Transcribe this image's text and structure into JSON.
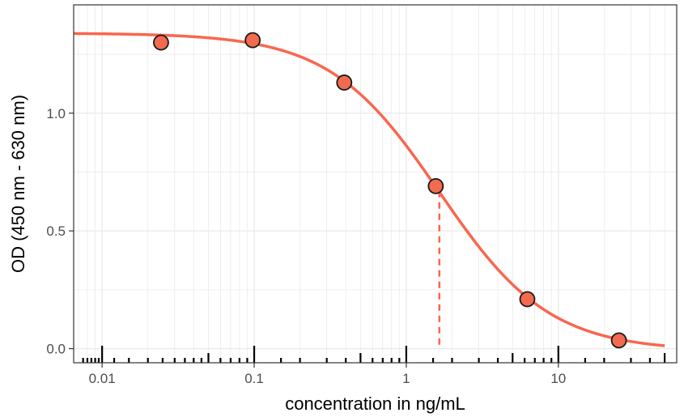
{
  "chart_data": {
    "type": "scatter",
    "xlabel": "concentration in ng/mL",
    "ylabel": "OD (450 nm - 630 nm)",
    "x_scale": "log10",
    "xlim": [
      0.0065,
      60
    ],
    "ylim": [
      -0.06,
      1.46
    ],
    "x_ticks": [
      0.01,
      0.1,
      1,
      10
    ],
    "x_tick_labels": [
      "0.01",
      "0.1",
      "1",
      "10"
    ],
    "y_ticks": [
      0.0,
      0.5,
      1.0
    ],
    "y_tick_labels": [
      "0.0",
      "0.5",
      "1.0"
    ],
    "grid": true,
    "points": {
      "x": [
        0.0244,
        0.0977,
        0.391,
        1.5625,
        6.25,
        25
      ],
      "y": [
        1.3,
        1.31,
        1.13,
        0.69,
        0.21,
        0.035
      ]
    },
    "fit_curve": {
      "model": "4PL",
      "top": 1.34,
      "bottom": -0.01,
      "ec50": 1.65,
      "hill": 1.2,
      "x_range": [
        0.0065,
        50
      ]
    },
    "ec50_marker": {
      "x": 1.65,
      "y": 0.67
    },
    "rug_x": [
      0.0075,
      0.008,
      0.0085,
      0.009,
      0.0095,
      0.01,
      0.012,
      0.015,
      0.02,
      0.025,
      0.03,
      0.035,
      0.04,
      0.045,
      0.05,
      0.06,
      0.07,
      0.08,
      0.09,
      0.1,
      0.15,
      0.2,
      0.3,
      0.4,
      0.5,
      0.6,
      0.7,
      0.8,
      0.9,
      1,
      1.5,
      2,
      3,
      4,
      5,
      6,
      7,
      8,
      9,
      10,
      15,
      20,
      30,
      40,
      50
    ],
    "rug_major": [
      0.01,
      0.05,
      0.1,
      0.5,
      1,
      5,
      10,
      50
    ],
    "colors": {
      "curve": "#f8674f",
      "point_fill": "#f26a4f",
      "point_stroke": "#1a1a1a",
      "grid": "#ebebeb",
      "panel_border": "#333333"
    }
  }
}
